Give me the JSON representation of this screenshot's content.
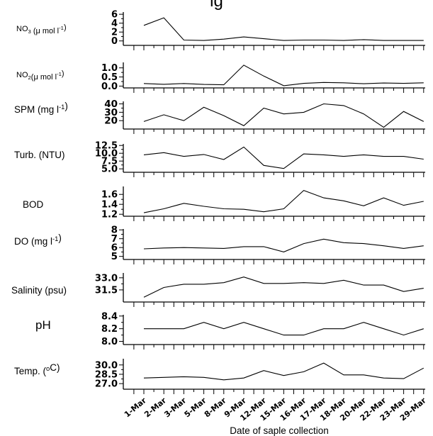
{
  "figure": {
    "top_text": "ig"
  },
  "chart_data": [
    {
      "type": "line",
      "ylabel": "NO",
      "ylabel_sub": "3",
      "ylabel_unit": " (μ mol l",
      "ylabel_sup": "-1",
      "ylabel_close": ")",
      "categories": [
        "1-Mar",
        "2-Mar",
        "3-Mar",
        "5-Mar",
        "8-Mar",
        "9-Mar",
        "12-Mar",
        "15-Mar",
        "16-Mar",
        "17-Mar",
        "18-Mar",
        "20-Mar",
        "22-Mar",
        "23-Mar",
        "29-Mar"
      ],
      "values": [
        3.5,
        5.2,
        0.2,
        0.1,
        0.4,
        0.9,
        0.5,
        0.1,
        0.2,
        0.2,
        0.1,
        0.3,
        0.1,
        0.1,
        0.1
      ],
      "yticks": [
        "6",
        "4",
        "2",
        "0"
      ],
      "ytick_values": [
        6,
        4,
        2,
        0
      ],
      "ylim": [
        -1,
        6.5
      ]
    },
    {
      "type": "line",
      "ylabel": "NO",
      "ylabel_sub": "2",
      "ylabel_unit": "(μ mol l",
      "ylabel_sup": "-1",
      "ylabel_close": ")",
      "categories": [
        "1-Mar",
        "2-Mar",
        "3-Mar",
        "5-Mar",
        "8-Mar",
        "9-Mar",
        "12-Mar",
        "15-Mar",
        "16-Mar",
        "17-Mar",
        "18-Mar",
        "20-Mar",
        "22-Mar",
        "23-Mar",
        "29-Mar"
      ],
      "values": [
        0.14,
        0.1,
        0.14,
        0.09,
        0.07,
        1.15,
        0.55,
        0.02,
        0.15,
        0.2,
        0.18,
        0.13,
        0.17,
        0.15,
        0.18
      ],
      "yticks": [
        "1.0",
        "0.5",
        "0.0"
      ],
      "ytick_values": [
        1.0,
        0.5,
        0.0
      ],
      "ylim": [
        -0.1,
        1.3
      ]
    },
    {
      "type": "line",
      "ylabel": "SPM (mg l",
      "ylabel_sub": "",
      "ylabel_unit": "",
      "ylabel_sup": "-1",
      "ylabel_close": ")",
      "categories": [
        "1-Mar",
        "2-Mar",
        "3-Mar",
        "5-Mar",
        "8-Mar",
        "9-Mar",
        "12-Mar",
        "15-Mar",
        "16-Mar",
        "17-Mar",
        "18-Mar",
        "20-Mar",
        "22-Mar",
        "23-Mar",
        "29-Mar"
      ],
      "values": [
        19,
        27,
        20,
        36,
        26,
        14,
        35,
        28,
        30,
        40,
        38,
        28,
        12,
        31,
        19
      ],
      "yticks": [
        "40",
        "30",
        "20"
      ],
      "ytick_values": [
        40,
        30,
        20
      ],
      "ylim": [
        10,
        43
      ]
    },
    {
      "type": "line",
      "ylabel": "Turb. (NTU)",
      "ylabel_sub": "",
      "ylabel_unit": "",
      "ylabel_sup": "",
      "ylabel_close": "",
      "categories": [
        "1-Mar",
        "2-Mar",
        "3-Mar",
        "5-Mar",
        "8-Mar",
        "9-Mar",
        "12-Mar",
        "15-Mar",
        "16-Mar",
        "17-Mar",
        "18-Mar",
        "20-Mar",
        "22-Mar",
        "23-Mar",
        "29-Mar"
      ],
      "values": [
        9.5,
        10.2,
        9.0,
        9.6,
        8.0,
        12.0,
        6.1,
        5.1,
        9.8,
        9.5,
        9.0,
        9.5,
        9.0,
        9.0,
        8.1
      ],
      "yticks": [
        "12.5",
        "10.0",
        "7.5",
        "5.0"
      ],
      "ytick_values": [
        12.5,
        10.0,
        7.5,
        5.0
      ],
      "ylim": [
        3.9,
        13.0
      ]
    },
    {
      "type": "line",
      "ylabel": "BOD",
      "ylabel_sub": "",
      "ylabel_unit": "",
      "ylabel_sup": "",
      "ylabel_close": "",
      "categories": [
        "1-Mar",
        "2-Mar",
        "3-Mar",
        "5-Mar",
        "8-Mar",
        "9-Mar",
        "12-Mar",
        "15-Mar",
        "16-Mar",
        "17-Mar",
        "18-Mar",
        "20-Mar",
        "22-Mar",
        "23-Mar",
        "29-Mar"
      ],
      "values": [
        1.23,
        1.31,
        1.42,
        1.36,
        1.31,
        1.3,
        1.25,
        1.31,
        1.68,
        1.53,
        1.47,
        1.37,
        1.53,
        1.38,
        1.46
      ],
      "yticks": [
        "1.6",
        "1.4",
        "1.2"
      ],
      "ytick_values": [
        1.6,
        1.4,
        1.2
      ],
      "ylim": [
        1.16,
        1.76
      ]
    },
    {
      "type": "line",
      "ylabel": "DO (mg l",
      "ylabel_sub": "",
      "ylabel_unit": "",
      "ylabel_sup": "-1",
      "ylabel_close": ")",
      "categories": [
        "1-Mar",
        "2-Mar",
        "3-Mar",
        "5-Mar",
        "8-Mar",
        "9-Mar",
        "12-Mar",
        "15-Mar",
        "16-Mar",
        "17-Mar",
        "18-Mar",
        "20-Mar",
        "22-Mar",
        "23-Mar",
        "29-Mar"
      ],
      "values": [
        5.85,
        5.95,
        6.0,
        5.95,
        5.9,
        6.1,
        6.1,
        5.5,
        6.45,
        6.95,
        6.55,
        6.45,
        6.2,
        5.9,
        6.2
      ],
      "yticks": [
        "8",
        "7",
        "6",
        "5"
      ],
      "ytick_values": [
        8,
        7,
        6,
        5
      ],
      "ylim": [
        4.65,
        8.1
      ]
    },
    {
      "type": "line",
      "ylabel": "Salinity (psu)",
      "ylabel_sub": "",
      "ylabel_unit": "",
      "ylabel_sup": "",
      "ylabel_close": "",
      "categories": [
        "1-Mar",
        "2-Mar",
        "3-Mar",
        "5-Mar",
        "8-Mar",
        "9-Mar",
        "12-Mar",
        "15-Mar",
        "16-Mar",
        "17-Mar",
        "18-Mar",
        "20-Mar",
        "22-Mar",
        "23-Mar",
        "29-Mar"
      ],
      "values": [
        30.6,
        31.8,
        32.2,
        32.2,
        32.4,
        33.1,
        32.3,
        32.3,
        32.4,
        32.3,
        32.7,
        32.1,
        32.1,
        31.3,
        31.7
      ],
      "yticks": [
        "33.0",
        "31.5"
      ],
      "ytick_values": [
        33.0,
        31.5
      ],
      "ylim": [
        30.0,
        33.6
      ]
    },
    {
      "type": "line",
      "ylabel": "pH",
      "ylabel_sub": "",
      "ylabel_unit": "",
      "ylabel_sup": "",
      "ylabel_close": "",
      "categories": [
        "1-Mar",
        "2-Mar",
        "3-Mar",
        "5-Mar",
        "8-Mar",
        "9-Mar",
        "12-Mar",
        "15-Mar",
        "16-Mar",
        "17-Mar",
        "18-Mar",
        "20-Mar",
        "22-Mar",
        "23-Mar",
        "29-Mar"
      ],
      "values": [
        8.2,
        8.2,
        8.2,
        8.3,
        8.2,
        8.3,
        8.2,
        8.1,
        8.1,
        8.2,
        8.2,
        8.3,
        8.2,
        8.1,
        8.2
      ],
      "yticks": [
        "8.4",
        "8.2",
        "8.0"
      ],
      "ytick_values": [
        8.4,
        8.2,
        8.0
      ],
      "ylim": [
        7.95,
        8.42
      ]
    },
    {
      "type": "line",
      "ylabel": "Temp. (",
      "ylabel_sub": "",
      "ylabel_unit": "",
      "ylabel_sup": "o",
      "ylabel_close": "C)",
      "categories": [
        "1-Mar",
        "2-Mar",
        "3-Mar",
        "5-Mar",
        "8-Mar",
        "9-Mar",
        "12-Mar",
        "15-Mar",
        "16-Mar",
        "17-Mar",
        "18-Mar",
        "20-Mar",
        "22-Mar",
        "23-Mar",
        "29-Mar"
      ],
      "values": [
        27.9,
        28.0,
        28.1,
        28.0,
        27.6,
        27.9,
        29.1,
        28.3,
        28.9,
        30.3,
        28.4,
        28.4,
        27.9,
        27.8,
        29.5
      ],
      "yticks": [
        "30.0",
        "28.5",
        "27.0"
      ],
      "ytick_values": [
        30.0,
        28.5,
        27.0
      ],
      "ylim": [
        26.1,
        31.0
      ]
    }
  ],
  "x_axis": {
    "labels": [
      "1-Mar",
      "2-Mar",
      "3-Mar",
      "5-Mar",
      "8-Mar",
      "9-Mar",
      "12-Mar",
      "15-Mar",
      "16-Mar",
      "17-Mar",
      "18-Mar",
      "20-Mar",
      "22-Mar",
      "23-Mar",
      "29-Mar"
    ],
    "title": "Date of saple collection"
  }
}
